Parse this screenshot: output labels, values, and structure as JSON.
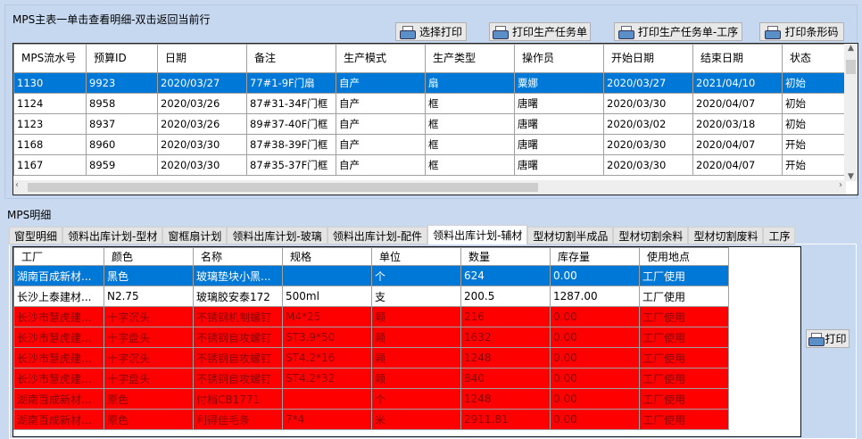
{
  "master": {
    "title": "MPS主表一单击查看明细-双击返回当前行",
    "buttons": [
      "选择打印",
      "打印生产任务单",
      "打印生产任务单-工序",
      "打印条形码"
    ],
    "columns": [
      "MPS流水号",
      "预算ID",
      "日期",
      "备注",
      "生产模式",
      "生产类型",
      "操作员",
      "开始日期",
      "结束日期",
      "状态"
    ],
    "rows": [
      [
        "1130",
        "9923",
        "2020/03/27",
        "77#1-9F门扇",
        "自产",
        "扇",
        "粟娜",
        "2020/03/27",
        "2021/04/10",
        "初始"
      ],
      [
        "1124",
        "8958",
        "2020/03/26",
        "87#31-34F门框",
        "自产",
        "框",
        "唐曙",
        "2020/03/30",
        "2020/04/07",
        "初始"
      ],
      [
        "1123",
        "8937",
        "2020/03/26",
        "89#37-40F门框",
        "自产",
        "框",
        "唐曙",
        "2020/03/02",
        "2020/03/18",
        "初始"
      ],
      [
        "1168",
        "8960",
        "2020/03/30",
        "87#38-39F门框",
        "自产",
        "框",
        "唐曙",
        "2020/03/30",
        "2020/04/07",
        "开始"
      ],
      [
        "1167",
        "8959",
        "2020/03/30",
        "87#35-37F门框",
        "自产",
        "框",
        "唐曙",
        "2020/03/30",
        "2020/04/07",
        "开始"
      ]
    ],
    "selected_row": 0
  },
  "detail": {
    "title": "MPS明细",
    "tabs": [
      "窗型明细",
      "领料出库计划-型材",
      "窗框扇计划",
      "领料出库计划-玻璃",
      "领料出库计划-配件",
      "领料出库计划-辅材",
      "型材切割半成品",
      "型材切割余料",
      "型材切割废料",
      "工序"
    ],
    "active_tab": 5,
    "columns": [
      "工厂",
      "颜色",
      "名称",
      "规格",
      "单位",
      "数量",
      "库存量",
      "使用地点"
    ],
    "rows": [
      {
        "cells": [
          "湖南百成新材...",
          "黑色",
          "玻璃垫块小黑...",
          "",
          "个",
          "624",
          "0.00",
          "工厂使用"
        ],
        "state": "selected"
      },
      {
        "cells": [
          "长沙上泰建材...",
          "N2.75",
          "玻璃胶安泰172",
          "500ml",
          "支",
          "200.5",
          "1287.00",
          "工厂使用"
        ],
        "state": "normal"
      },
      {
        "cells": [
          "长沙市慧虎建...",
          "十字沉头",
          "不锈钢机制螺钉",
          "M4*25",
          "颗",
          "216",
          "0.00",
          "工厂使用"
        ],
        "state": "shortage"
      },
      {
        "cells": [
          "长沙市慧虎建...",
          "十字盘头",
          "不锈钢自攻螺钉",
          "ST3.9*50",
          "颗",
          "1632",
          "0.00",
          "工厂使用"
        ],
        "state": "shortage"
      },
      {
        "cells": [
          "长沙市慧虎建...",
          "十字沉头",
          "不锈钢自攻螺钉",
          "ST4.2*16",
          "颗",
          "1248",
          "0.00",
          "工厂使用"
        ],
        "state": "shortage"
      },
      {
        "cells": [
          "长沙市慧虎建...",
          "十字盘头",
          "不锈钢自攻螺钉",
          "ST4.2*32",
          "颗",
          "840",
          "0.00",
          "工厂使用"
        ],
        "state": "shortage"
      },
      {
        "cells": [
          "湖南百成新材...",
          "原色",
          "付档CB1771",
          "",
          "个",
          "1248",
          "0.00",
          "工厂使用"
        ],
        "state": "shortage"
      },
      {
        "cells": [
          "湖南百成新材...",
          "原色",
          "利得佳毛条",
          "7*4",
          "米",
          "2911.81",
          "0.00",
          "工厂使用"
        ],
        "state": "shortage"
      }
    ],
    "print_label": "打印"
  },
  "colors": {
    "selected": "#0078d7",
    "shortage": "#ff0000",
    "background": "#c9daf0"
  }
}
